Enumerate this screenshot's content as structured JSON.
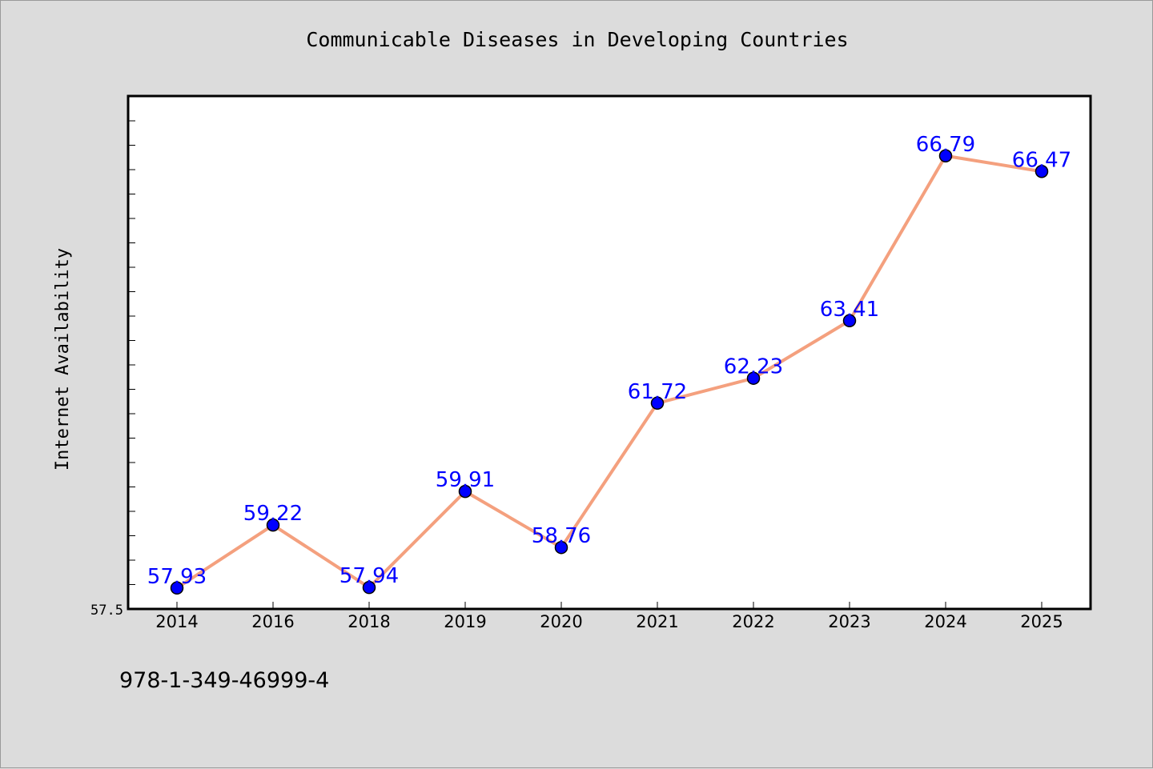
{
  "chart_data": {
    "type": "line",
    "title": "Communicable Diseases in Developing Countries",
    "xlabel": "",
    "ylabel": "Internet Availability",
    "categories": [
      "2014",
      "2016",
      "2018",
      "2019",
      "2020",
      "2021",
      "2022",
      "2023",
      "2024",
      "2025"
    ],
    "series": [
      {
        "values": [
          57.93,
          59.22,
          57.94,
          59.91,
          58.76,
          61.72,
          62.23,
          63.41,
          66.79,
          66.47
        ],
        "labels": [
          "57.93",
          "59.22",
          "57.94",
          "59.91",
          "58.76",
          "61.72",
          "62.23",
          "63.41",
          "66.79",
          "66.47"
        ]
      }
    ],
    "y_tick_labels": [
      "57.5"
    ],
    "ylim": [
      57.5,
      68.0
    ],
    "grid": false,
    "colors": {
      "line": "#f4a07e",
      "marker": "#0000ff",
      "label": "#0000ff"
    }
  },
  "footer": {
    "code": "978-1-349-46999-4"
  }
}
